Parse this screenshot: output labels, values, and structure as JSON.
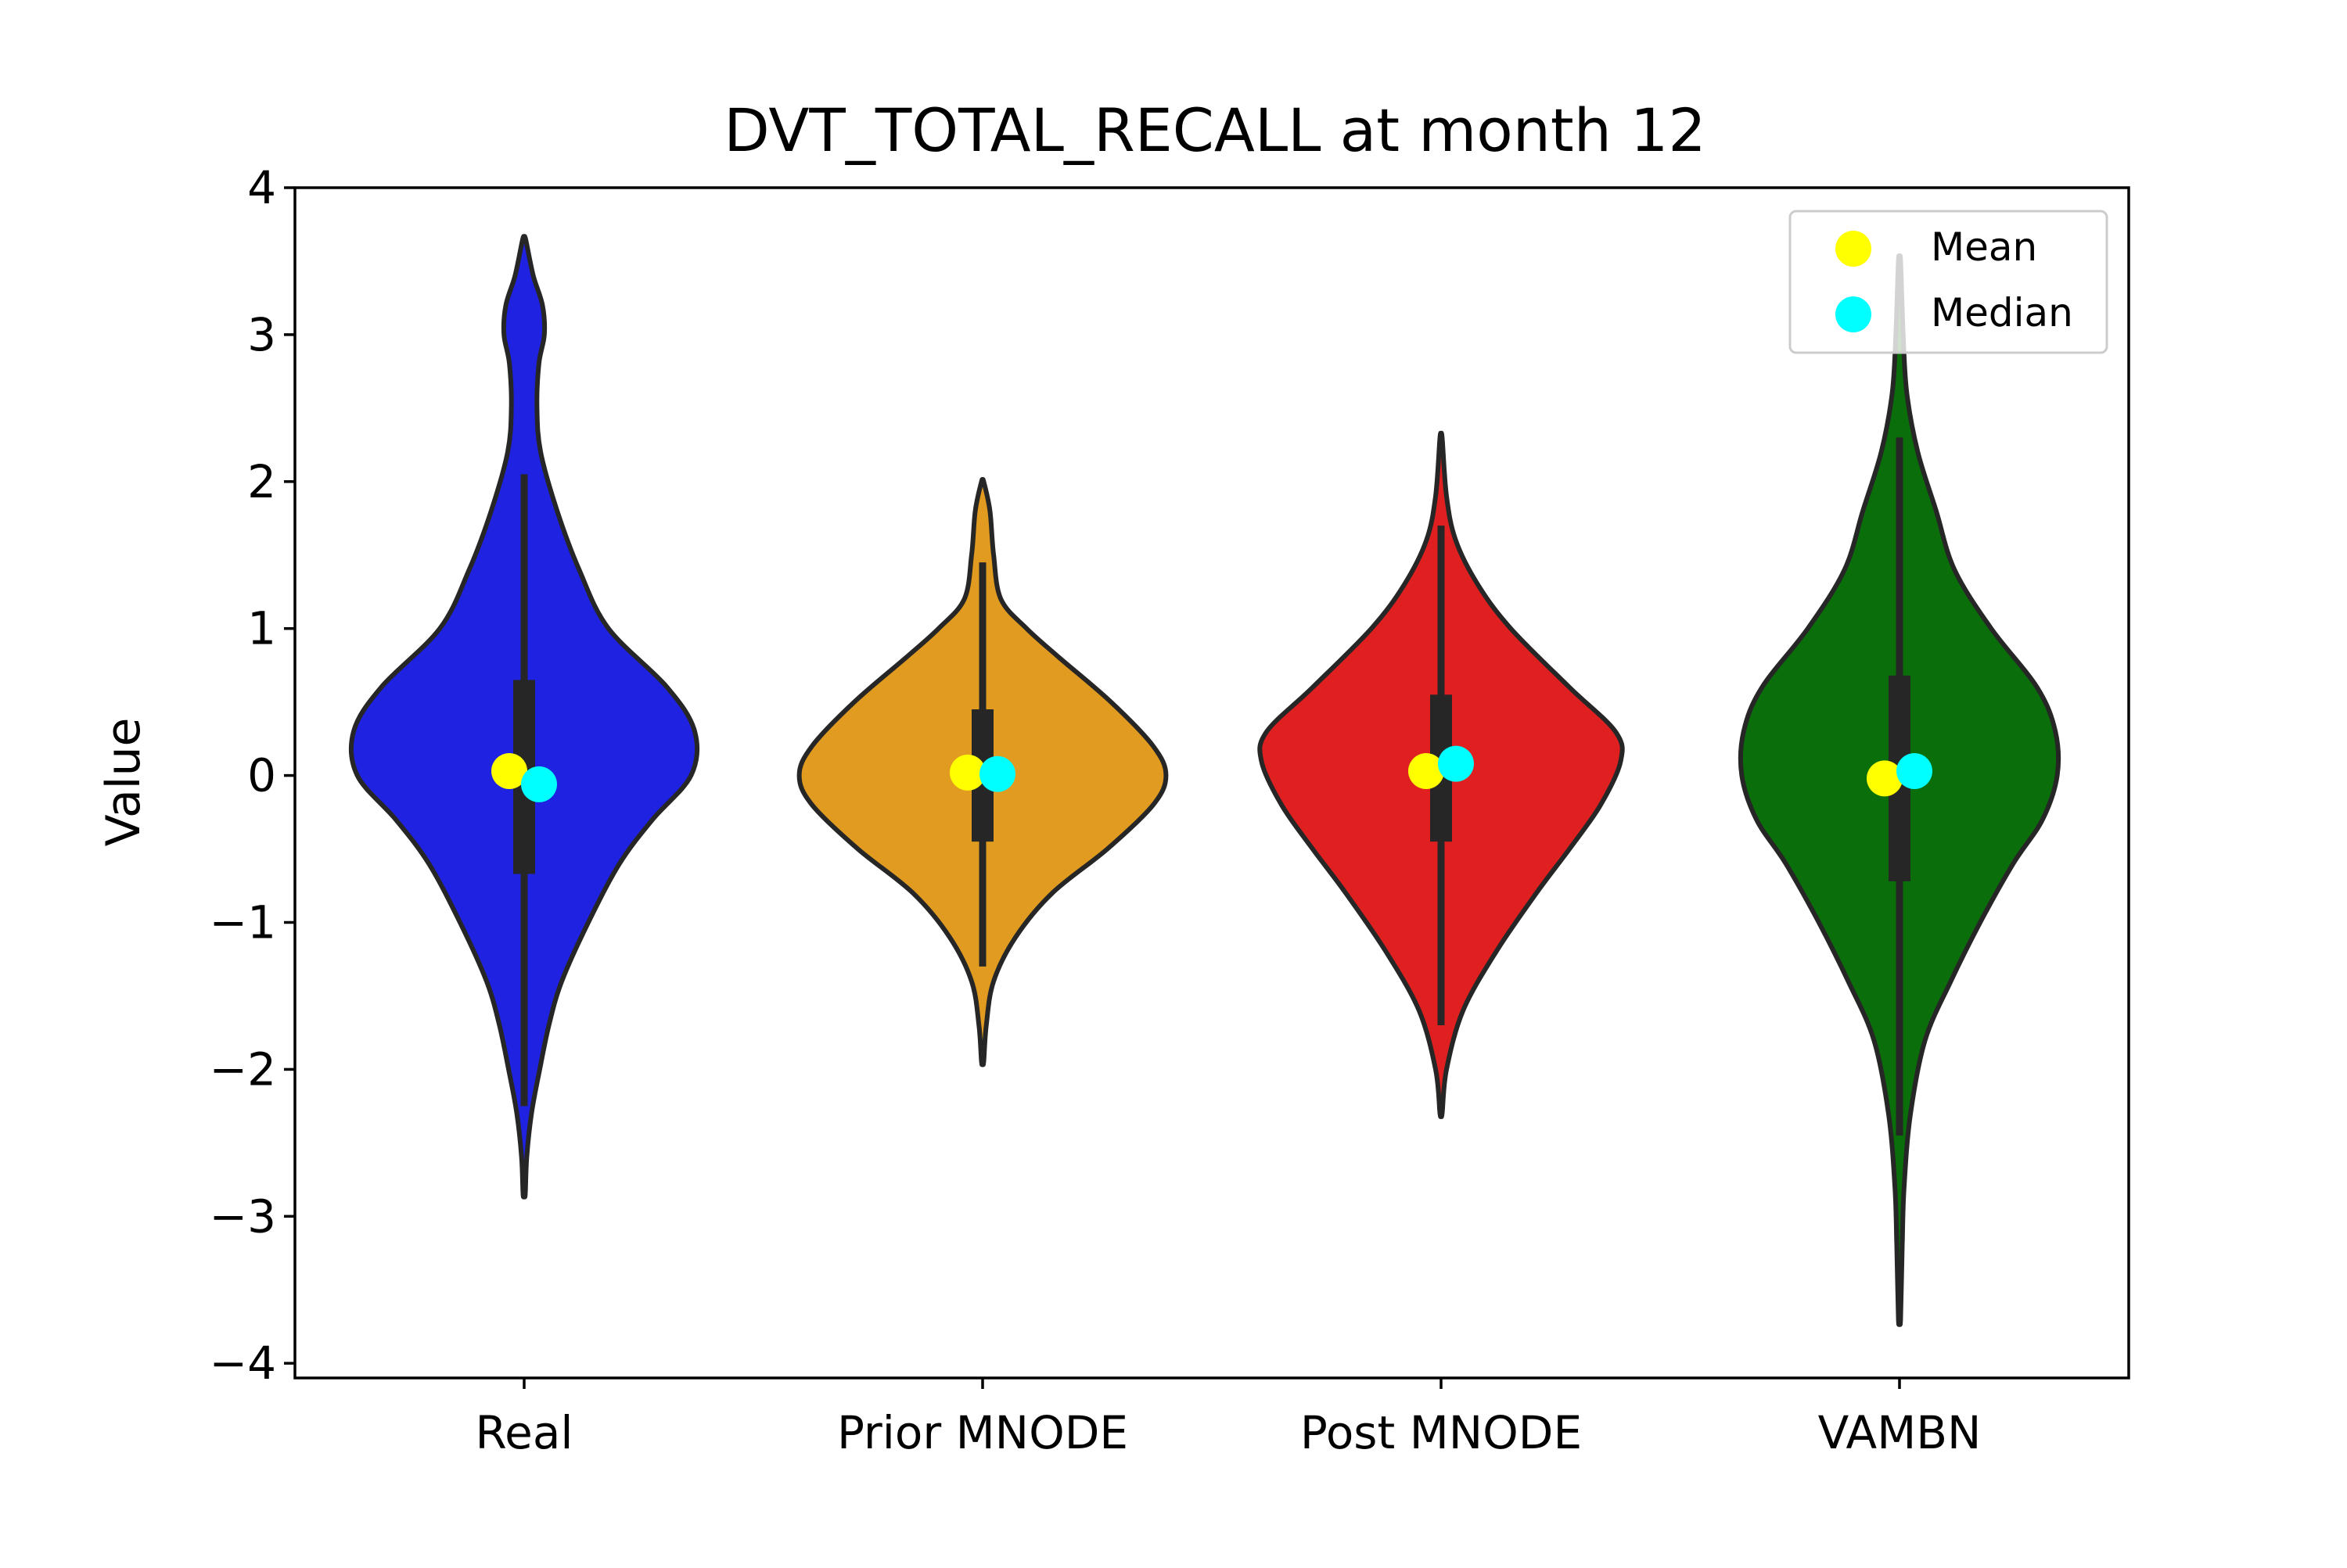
{
  "chart_data": {
    "type": "violin",
    "title": "DVT_TOTAL_RECALL at month 12",
    "xlabel": "",
    "ylabel": "Value",
    "ylim": [
      -4.1,
      4.0
    ],
    "yticks": [
      -4,
      -3,
      -2,
      -1,
      0,
      1,
      2,
      3,
      4
    ],
    "ytick_labels": [
      "−4",
      "−3",
      "−2",
      "−1",
      "0",
      "1",
      "2",
      "3",
      "4"
    ],
    "categories": [
      "Real",
      "Prior MNODE",
      "Post MNODE",
      "VAMBN"
    ],
    "grid": false,
    "legend_position": "top-right",
    "legend": [
      {
        "label": "Mean",
        "color": "#ffff00"
      },
      {
        "label": "Median",
        "color": "#00ffff"
      }
    ],
    "series": [
      {
        "category": "Real",
        "color": "#1f22e0",
        "min": -2.85,
        "max": 3.65,
        "q1": -0.67,
        "q3": 0.65,
        "whisker_low": -2.25,
        "whisker_high": 2.05,
        "mean": 0.03,
        "median": -0.06,
        "density": [
          [
            -2.85,
            0.006
          ],
          [
            -2.6,
            0.014
          ],
          [
            -2.3,
            0.04
          ],
          [
            -2.0,
            0.085
          ],
          [
            -1.7,
            0.135
          ],
          [
            -1.4,
            0.205
          ],
          [
            -1.0,
            0.35
          ],
          [
            -0.6,
            0.52
          ],
          [
            -0.3,
            0.7
          ],
          [
            0.0,
            0.91
          ],
          [
            0.3,
            0.93
          ],
          [
            0.6,
            0.78
          ],
          [
            1.0,
            0.46
          ],
          [
            1.4,
            0.3
          ],
          [
            1.8,
            0.18
          ],
          [
            2.2,
            0.09
          ],
          [
            2.5,
            0.07
          ],
          [
            2.8,
            0.08
          ],
          [
            3.0,
            0.11
          ],
          [
            3.2,
            0.1
          ],
          [
            3.4,
            0.05
          ],
          [
            3.65,
            0.008
          ]
        ]
      },
      {
        "category": "Prior MNODE",
        "color": "#e09b20",
        "min": -1.95,
        "max": 2.0,
        "q1": -0.45,
        "q3": 0.45,
        "whisker_low": -1.3,
        "whisker_high": 1.45,
        "mean": 0.02,
        "median": 0.01,
        "density": [
          [
            -1.95,
            0.006
          ],
          [
            -1.7,
            0.02
          ],
          [
            -1.4,
            0.06
          ],
          [
            -1.1,
            0.18
          ],
          [
            -0.8,
            0.38
          ],
          [
            -0.5,
            0.68
          ],
          [
            -0.2,
            0.93
          ],
          [
            0.0,
            1.0
          ],
          [
            0.2,
            0.93
          ],
          [
            0.5,
            0.7
          ],
          [
            0.8,
            0.42
          ],
          [
            1.0,
            0.24
          ],
          [
            1.2,
            0.1
          ],
          [
            1.5,
            0.06
          ],
          [
            1.8,
            0.04
          ],
          [
            2.0,
            0.006
          ]
        ]
      },
      {
        "category": "Post MNODE",
        "color": "#e02020",
        "min": -2.3,
        "max": 2.3,
        "q1": -0.45,
        "q3": 0.55,
        "whisker_low": -1.7,
        "whisker_high": 1.7,
        "mean": 0.03,
        "median": 0.08,
        "density": [
          [
            -2.3,
            0.006
          ],
          [
            -2.0,
            0.03
          ],
          [
            -1.6,
            0.12
          ],
          [
            -1.2,
            0.3
          ],
          [
            -0.8,
            0.52
          ],
          [
            -0.5,
            0.7
          ],
          [
            -0.2,
            0.87
          ],
          [
            0.1,
            0.98
          ],
          [
            0.3,
            0.95
          ],
          [
            0.6,
            0.7
          ],
          [
            1.0,
            0.38
          ],
          [
            1.3,
            0.2
          ],
          [
            1.6,
            0.08
          ],
          [
            1.9,
            0.03
          ],
          [
            2.3,
            0.006
          ]
        ]
      },
      {
        "category": "VAMBN",
        "color": "#0a6e0a",
        "min": -3.7,
        "max": 3.5,
        "q1": -0.72,
        "q3": 0.68,
        "whisker_low": -2.45,
        "whisker_high": 2.3,
        "mean": -0.02,
        "median": 0.03,
        "density": [
          [
            -3.7,
            0.006
          ],
          [
            -3.2,
            0.015
          ],
          [
            -2.8,
            0.025
          ],
          [
            -2.3,
            0.06
          ],
          [
            -1.8,
            0.14
          ],
          [
            -1.4,
            0.28
          ],
          [
            -1.0,
            0.44
          ],
          [
            -0.6,
            0.62
          ],
          [
            -0.3,
            0.78
          ],
          [
            0.0,
            0.86
          ],
          [
            0.3,
            0.85
          ],
          [
            0.6,
            0.75
          ],
          [
            1.0,
            0.5
          ],
          [
            1.4,
            0.3
          ],
          [
            1.8,
            0.2
          ],
          [
            2.2,
            0.1
          ],
          [
            2.6,
            0.04
          ],
          [
            3.0,
            0.02
          ],
          [
            3.5,
            0.006
          ]
        ]
      }
    ]
  }
}
